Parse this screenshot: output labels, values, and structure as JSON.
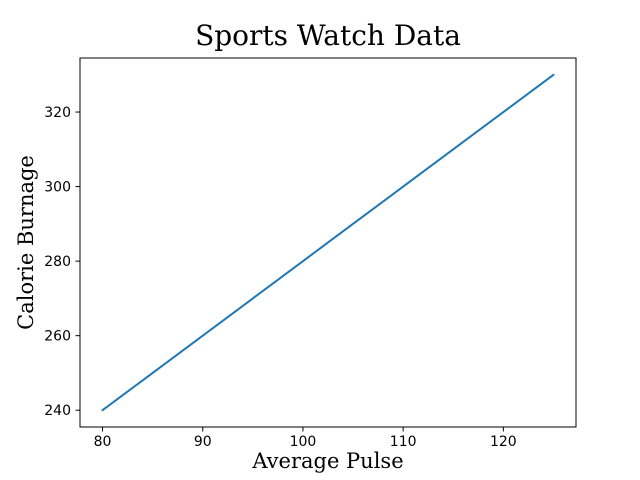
{
  "figure": {
    "background": "#ffffff"
  },
  "chart_data": {
    "type": "line",
    "title": "Sports Watch Data",
    "xlabel": "Average Pulse",
    "ylabel": "Calorie Burnage",
    "x": [
      80,
      85,
      90,
      95,
      100,
      105,
      110,
      115,
      120,
      125
    ],
    "y": [
      240,
      250,
      260,
      270,
      280,
      290,
      300,
      310,
      320,
      330
    ],
    "xticks": [
      "80",
      "90",
      "100",
      "110",
      "120"
    ],
    "xtick_values": [
      80,
      90,
      100,
      110,
      120
    ],
    "yticks": [
      "240",
      "260",
      "280",
      "300",
      "320"
    ],
    "ytick_values": [
      240,
      260,
      280,
      300,
      320
    ],
    "xlim": [
      77.75,
      127.25
    ],
    "ylim": [
      235.5,
      334.5
    ],
    "grid": false,
    "legend": null,
    "line_color": "#1f77b4",
    "title_color": "#0000ff",
    "label_color": "#8b0000",
    "tick_color": "#000000",
    "spine_color": "#000000"
  }
}
